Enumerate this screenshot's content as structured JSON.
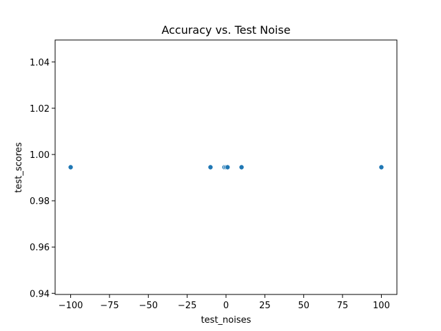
{
  "chart_data": {
    "type": "scatter",
    "title": "Accuracy vs. Test Noise",
    "xlabel": "test_noises",
    "ylabel": "test_scores",
    "xlim": [
      -110,
      110
    ],
    "ylim": [
      0.9395,
      1.0495
    ],
    "x_ticks": [
      -100,
      -75,
      -50,
      -25,
      0,
      25,
      50,
      75,
      100
    ],
    "y_ticks": [
      0.94,
      0.96,
      0.98,
      1.0,
      1.02,
      1.04
    ],
    "x_tick_labels": [
      "−100",
      "−75",
      "−50",
      "−25",
      "0",
      "25",
      "50",
      "75",
      "100"
    ],
    "y_tick_labels": [
      "0.94",
      "0.96",
      "0.98",
      "1.00",
      "1.02",
      "1.04"
    ],
    "grid": false,
    "marker_color": "#1f77b4",
    "points": [
      {
        "x": -100,
        "y": 0.9945
      },
      {
        "x": -10,
        "y": 0.9945
      },
      {
        "x": -1,
        "y": 0.9945
      },
      {
        "x": 0,
        "y": 0.9945
      },
      {
        "x": 1,
        "y": 0.9945
      },
      {
        "x": 10,
        "y": 0.9945
      },
      {
        "x": 100,
        "y": 0.9945
      }
    ]
  }
}
